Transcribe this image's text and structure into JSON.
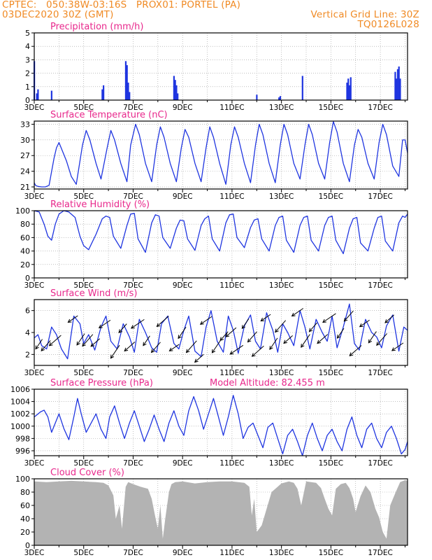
{
  "header": {
    "line1_left": "CPTEC:   050:38W-03:16S   PROX01: PORTEL (PA)",
    "line2_left": "03DEC2020 30Z (GMT)",
    "line2_right": "Vertical Grid Line: 30Z",
    "line3_right": "TQ0126L028",
    "altitude": "Model Altitude: 82.455 m"
  },
  "colors": {
    "header": "#f08a24",
    "title": "#e8288c",
    "series": "#1f35e0",
    "wind_arrow": "#000000",
    "cloud_fill": "#b3b3b3",
    "grid": "#9a9a9a"
  },
  "chart_data": [
    {
      "type": "bar",
      "title": "Precipitation (mm/h)",
      "ylim": [
        0,
        5
      ],
      "yticks": [
        "0",
        "1",
        "2",
        "3",
        "4",
        "5"
      ],
      "xticks": [
        "3DEC",
        "5DEC",
        "7DEC",
        "9DEC",
        "11DEC",
        "13DEC",
        "15DEC",
        "17DEC"
      ],
      "xlim_days": [
        3,
        18.1
      ],
      "x": [
        3.0,
        3.1,
        3.15,
        3.7,
        5.75,
        5.8,
        6.7,
        6.75,
        6.8,
        6.85,
        8.65,
        8.7,
        8.75,
        8.8,
        12.0,
        12.9,
        12.95,
        13.85,
        15.65,
        15.7,
        15.75,
        15.8,
        17.6,
        17.65,
        17.7,
        17.75,
        17.8
      ],
      "values": [
        2.9,
        0.5,
        0.8,
        0.7,
        0.8,
        1.1,
        2.9,
        2.6,
        1.3,
        0.6,
        1.8,
        1.5,
        1.1,
        0.5,
        0.4,
        0.2,
        0.3,
        1.8,
        1.3,
        1.6,
        1.1,
        1.7,
        2.1,
        1.6,
        2.3,
        2.5,
        1.6
      ]
    },
    {
      "type": "line",
      "title": "Surface Temperature (nC)",
      "ylim": [
        20.6,
        33.6
      ],
      "yticks": [
        "21",
        "24",
        "27",
        "30",
        "33"
      ],
      "xticks": [
        "3DEC",
        "5DEC",
        "7DEC",
        "9DEC",
        "11DEC",
        "13DEC",
        "15DEC",
        "17DEC"
      ],
      "xlim_days": [
        3,
        18.1
      ],
      "x": [
        3.0,
        3.05,
        3.15,
        3.3,
        3.45,
        3.6,
        3.8,
        3.9,
        4.0,
        4.3,
        4.5,
        4.7,
        4.95,
        5.1,
        5.25,
        5.5,
        5.7,
        5.95,
        6.1,
        6.25,
        6.5,
        6.75,
        6.9,
        7.1,
        7.25,
        7.5,
        7.75,
        7.95,
        8.1,
        8.25,
        8.5,
        8.75,
        8.95,
        9.1,
        9.25,
        9.5,
        9.75,
        9.95,
        10.1,
        10.25,
        10.5,
        10.75,
        10.95,
        11.1,
        11.25,
        11.5,
        11.75,
        11.95,
        12.1,
        12.25,
        12.5,
        12.75,
        12.95,
        13.1,
        13.25,
        13.5,
        13.75,
        13.95,
        14.1,
        14.25,
        14.5,
        14.75,
        14.95,
        15.1,
        15.25,
        15.5,
        15.75,
        15.95,
        16.1,
        16.25,
        16.5,
        16.75,
        16.95,
        17.1,
        17.25,
        17.5,
        17.75,
        17.9,
        18.0,
        18.1
      ],
      "values": [
        21.8,
        21.3,
        21.1,
        21.0,
        21.0,
        21.3,
        26.5,
        28.5,
        29.5,
        26.0,
        23.0,
        21.5,
        29.0,
        31.8,
        30.0,
        25.5,
        22.5,
        28.5,
        31.8,
        30.0,
        25.5,
        22.0,
        29.0,
        33.0,
        31.0,
        25.5,
        22.0,
        29.0,
        32.5,
        30.5,
        25.5,
        22.0,
        28.5,
        32.0,
        30.5,
        25.5,
        22.0,
        28.5,
        32.5,
        30.5,
        25.5,
        21.5,
        29.0,
        32.5,
        30.5,
        25.5,
        21.8,
        29.0,
        33.0,
        31.0,
        25.5,
        21.8,
        29.0,
        33.0,
        31.0,
        25.5,
        22.5,
        29.0,
        33.0,
        31.0,
        25.5,
        22.5,
        29.5,
        33.5,
        31.5,
        25.5,
        22.0,
        29.0,
        32.0,
        30.5,
        25.5,
        22.5,
        29.5,
        33.0,
        31.0,
        25.0,
        23.0,
        30.0,
        30.0,
        27.5
      ]
    },
    {
      "type": "line",
      "title": "Relative Humidity (%)",
      "ylim": [
        0,
        100
      ],
      "yticks": [
        "0",
        "20",
        "40",
        "60",
        "80",
        "100"
      ],
      "xticks": [
        "3DEC",
        "5DEC",
        "7DEC",
        "9DEC",
        "11DEC",
        "13DEC",
        "15DEC",
        "17DEC"
      ],
      "xlim_days": [
        3,
        18.1
      ],
      "x": [
        3.0,
        3.2,
        3.4,
        3.55,
        3.7,
        3.85,
        4.0,
        4.2,
        4.4,
        4.65,
        4.85,
        5.0,
        5.2,
        5.5,
        5.75,
        5.9,
        6.05,
        6.2,
        6.5,
        6.75,
        6.9,
        7.05,
        7.2,
        7.5,
        7.75,
        7.9,
        8.05,
        8.2,
        8.5,
        8.75,
        8.9,
        9.05,
        9.2,
        9.5,
        9.75,
        9.9,
        10.05,
        10.2,
        10.5,
        10.75,
        10.9,
        11.05,
        11.2,
        11.5,
        11.75,
        11.9,
        12.05,
        12.2,
        12.5,
        12.75,
        12.9,
        13.05,
        13.2,
        13.5,
        13.75,
        13.9,
        14.05,
        14.2,
        14.5,
        14.75,
        14.9,
        15.05,
        15.2,
        15.5,
        15.75,
        15.9,
        16.05,
        16.2,
        16.5,
        16.75,
        16.9,
        17.05,
        17.2,
        17.5,
        17.75,
        17.9,
        18.0,
        18.1
      ],
      "values": [
        100,
        98,
        80,
        62,
        56,
        80,
        95,
        100,
        98,
        90,
        62,
        48,
        42,
        65,
        88,
        92,
        90,
        62,
        44,
        78,
        95,
        96,
        58,
        38,
        82,
        94,
        92,
        60,
        44,
        74,
        86,
        85,
        58,
        41,
        78,
        88,
        92,
        58,
        40,
        82,
        94,
        95,
        60,
        45,
        75,
        86,
        88,
        58,
        40,
        78,
        90,
        92,
        56,
        38,
        78,
        90,
        92,
        56,
        40,
        78,
        90,
        92,
        56,
        36,
        74,
        88,
        90,
        52,
        40,
        74,
        90,
        92,
        55,
        40,
        82,
        92,
        90,
        95
      ]
    },
    {
      "type": "line",
      "title": "Surface Wind (m/s)",
      "ylim": [
        1.0,
        7.0
      ],
      "yticks": [
        "2",
        "4",
        "6"
      ],
      "xticks": [
        "3DEC",
        "5DEC",
        "7DEC",
        "9DEC",
        "11DEC",
        "13DEC",
        "15DEC",
        "17DEC"
      ],
      "xlim_days": [
        3,
        18.1
      ],
      "x": [
        3.0,
        3.15,
        3.3,
        3.5,
        3.7,
        3.9,
        4.1,
        4.35,
        4.6,
        4.85,
        5.0,
        5.2,
        5.45,
        5.7,
        5.9,
        6.1,
        6.35,
        6.6,
        6.85,
        7.05,
        7.25,
        7.5,
        7.75,
        7.95,
        8.15,
        8.4,
        8.65,
        8.85,
        9.05,
        9.25,
        9.5,
        9.75,
        9.95,
        10.15,
        10.4,
        10.65,
        10.85,
        11.05,
        11.25,
        11.5,
        11.75,
        11.95,
        12.15,
        12.4,
        12.65,
        12.85,
        13.05,
        13.25,
        13.5,
        13.75,
        13.95,
        14.15,
        14.4,
        14.65,
        14.85,
        15.05,
        15.25,
        15.5,
        15.75,
        15.95,
        16.15,
        16.4,
        16.65,
        16.85,
        17.05,
        17.25,
        17.5,
        17.75,
        17.95,
        18.1
      ],
      "values": [
        3.5,
        3.8,
        2.8,
        2.5,
        4.5,
        3.8,
        2.5,
        1.6,
        5.5,
        4.8,
        3.0,
        3.8,
        2.4,
        4.5,
        5.5,
        3.2,
        2.5,
        4.8,
        3.6,
        2.2,
        5.2,
        4.0,
        2.6,
        2.2,
        4.8,
        5.5,
        3.0,
        2.5,
        4.2,
        5.5,
        2.3,
        1.8,
        4.5,
        6.0,
        3.2,
        2.2,
        5.5,
        4.2,
        2.1,
        4.6,
        5.6,
        3.2,
        2.5,
        5.8,
        4.2,
        2.2,
        4.8,
        4.0,
        2.8,
        6.0,
        4.5,
        2.5,
        5.2,
        4.0,
        3.2,
        5.5,
        2.6,
        4.5,
        6.6,
        3.0,
        2.4,
        5.2,
        4.0,
        3.6,
        2.6,
        4.6,
        5.6,
        2.3,
        4.5,
        4.2
      ],
      "arrow_direction": "toward lower-left",
      "arrows_x": [
        3.25,
        3.55,
        3.95,
        4.65,
        4.95,
        5.25,
        5.55,
        5.95,
        6.35,
        6.65,
        6.95,
        7.3,
        7.6,
        8.0,
        8.3,
        8.75,
        9.05,
        9.45,
        9.75,
        10.05,
        10.45,
        10.75,
        11.05,
        11.3,
        11.6,
        11.9,
        12.15,
        12.45,
        12.75,
        13.05,
        13.35,
        13.75,
        14.05,
        14.35,
        14.75,
        15.05,
        15.45,
        15.8,
        16.1,
        16.45,
        16.75,
        17.15,
        17.45,
        17.8
      ]
    },
    {
      "type": "line",
      "title": "Surface Pressure (hPa)",
      "ylim": [
        995.2,
        1006
      ],
      "yticks": [
        "996",
        "998",
        "1000",
        "1002",
        "1004",
        "1006"
      ],
      "xticks": [
        "3DEC",
        "5DEC",
        "7DEC",
        "9DEC",
        "11DEC",
        "13DEC",
        "15DEC",
        "17DEC"
      ],
      "xlim_days": [
        3,
        18.1
      ],
      "x": [
        3.0,
        3.1,
        3.25,
        3.4,
        3.55,
        3.7,
        3.85,
        4.0,
        4.2,
        4.4,
        4.6,
        4.75,
        4.9,
        5.1,
        5.3,
        5.5,
        5.7,
        5.9,
        6.05,
        6.25,
        6.45,
        6.65,
        6.85,
        7.05,
        7.25,
        7.45,
        7.65,
        7.85,
        8.05,
        8.25,
        8.45,
        8.65,
        8.85,
        9.05,
        9.25,
        9.45,
        9.65,
        9.85,
        10.05,
        10.25,
        10.45,
        10.65,
        10.85,
        11.05,
        11.25,
        11.45,
        11.65,
        11.85,
        12.05,
        12.25,
        12.45,
        12.65,
        12.85,
        13.05,
        13.25,
        13.45,
        13.65,
        13.85,
        14.05,
        14.25,
        14.45,
        14.65,
        14.85,
        15.05,
        15.25,
        15.45,
        15.65,
        15.85,
        16.05,
        16.25,
        16.45,
        16.65,
        16.85,
        17.05,
        17.25,
        17.45,
        17.65,
        17.85,
        18.0,
        18.1
      ],
      "values": [
        1001.5,
        1001.8,
        1002.3,
        1002.6,
        1001.5,
        999.0,
        1000.5,
        1002.0,
        999.6,
        997.8,
        1001.5,
        1004.5,
        1002.0,
        999.0,
        1000.5,
        1002.0,
        999.5,
        998.0,
        1001.5,
        1003.3,
        1000.5,
        998.0,
        1000.5,
        1002.5,
        1000.0,
        997.5,
        999.5,
        1001.8,
        999.5,
        997.5,
        1000.5,
        1002.5,
        1000.0,
        998.5,
        1002.5,
        1004.8,
        1002.5,
        999.5,
        1002.0,
        1004.5,
        1001.5,
        998.5,
        1001.5,
        1005.0,
        1002.0,
        998.0,
        999.8,
        1000.5,
        998.5,
        996.5,
        999.8,
        1000.5,
        998.0,
        995.5,
        998.5,
        999.5,
        997.5,
        995.2,
        998.5,
        1000.5,
        998.0,
        996.0,
        998.5,
        999.5,
        997.5,
        996.0,
        999.5,
        1001.5,
        998.5,
        996.5,
        999.5,
        1000.5,
        998.0,
        996.5,
        999.0,
        1000.0,
        998.0,
        995.5,
        996.2,
        997.5
      ]
    },
    {
      "type": "area",
      "title": "Cloud Cover (%)",
      "ylim": [
        0,
        100
      ],
      "yticks": [
        "0",
        "20",
        "40",
        "60",
        "80",
        "100"
      ],
      "xticks": [
        "3DEC",
        "5DEC",
        "7DEC",
        "9DEC",
        "11DEC",
        "13DEC",
        "15DEC",
        "17DEC"
      ],
      "xlim_days": [
        3,
        18.1
      ],
      "x": [
        3.0,
        3.5,
        4.0,
        4.5,
        5.0,
        5.5,
        5.8,
        6.0,
        6.2,
        6.3,
        6.45,
        6.55,
        6.7,
        6.8,
        7.0,
        7.3,
        7.6,
        7.75,
        7.9,
        8.0,
        8.1,
        8.2,
        8.3,
        8.45,
        8.55,
        8.7,
        9.0,
        9.5,
        10.0,
        10.5,
        11.0,
        11.5,
        11.7,
        11.8,
        11.9,
        12.0,
        12.2,
        12.6,
        13.0,
        13.3,
        13.5,
        13.65,
        13.8,
        14.0,
        14.4,
        14.6,
        14.75,
        14.9,
        15.05,
        15.2,
        15.4,
        15.6,
        15.75,
        15.9,
        16.0,
        16.2,
        16.4,
        16.6,
        16.8,
        16.95,
        17.1,
        17.25,
        17.4,
        17.6,
        17.8,
        18.0,
        18.1
      ],
      "values": [
        96,
        95,
        96,
        97,
        96,
        95,
        94,
        90,
        75,
        40,
        60,
        25,
        88,
        95,
        92,
        88,
        85,
        70,
        42,
        25,
        60,
        10,
        40,
        80,
        92,
        95,
        96,
        93,
        95,
        96,
        96,
        94,
        88,
        45,
        70,
        20,
        30,
        80,
        93,
        96,
        94,
        85,
        60,
        96,
        94,
        86,
        70,
        55,
        45,
        85,
        92,
        94,
        86,
        70,
        50,
        74,
        90,
        80,
        55,
        42,
        20,
        10,
        60,
        78,
        95,
        98,
        97
      ]
    }
  ]
}
